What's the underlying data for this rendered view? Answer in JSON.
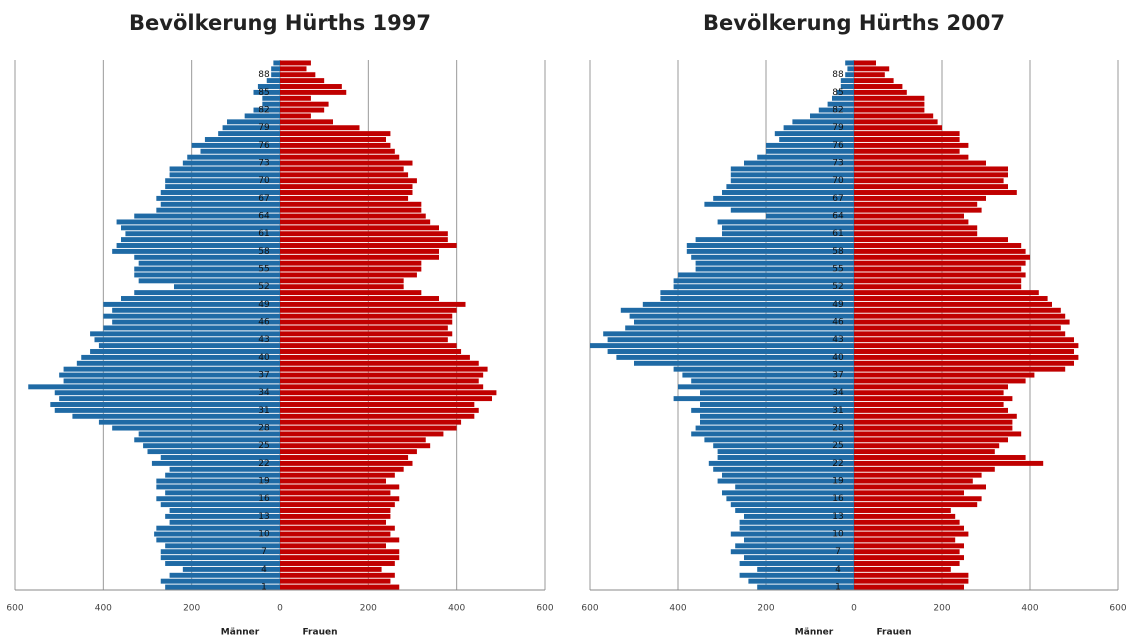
{
  "chart_data": [
    {
      "type": "bar",
      "orientation": "horizontal",
      "title": "Bevölkerung Hürths 1997",
      "categories": [
        "1",
        null,
        null,
        "4",
        null,
        null,
        "7",
        null,
        null,
        "10",
        null,
        null,
        "13",
        null,
        null,
        "16",
        null,
        null,
        "19",
        null,
        null,
        "22",
        null,
        null,
        "25",
        null,
        null,
        "28",
        null,
        null,
        "31",
        null,
        null,
        "34",
        null,
        null,
        "37",
        null,
        null,
        "40",
        null,
        null,
        "43",
        null,
        null,
        "46",
        null,
        null,
        "49",
        null,
        null,
        "52",
        null,
        null,
        "55",
        null,
        null,
        "58",
        null,
        null,
        "61",
        null,
        null,
        "64",
        null,
        null,
        "67",
        null,
        null,
        "70",
        null,
        null,
        "73",
        null,
        null,
        "76",
        null,
        null,
        "79",
        null,
        null,
        "82",
        null,
        null,
        "85",
        null,
        null,
        "88",
        null,
        null
      ],
      "series": [
        {
          "name": "Männer",
          "color": "#1f6aa5",
          "values": [
            -260,
            -270,
            -250,
            -220,
            -260,
            -270,
            -270,
            -260,
            -280,
            -285,
            -280,
            -250,
            -260,
            -250,
            -270,
            -280,
            -260,
            -280,
            -280,
            -260,
            -250,
            -290,
            -270,
            -300,
            -310,
            -330,
            -320,
            -380,
            -410,
            -470,
            -510,
            -520,
            -500,
            -510,
            -570,
            -490,
            -500,
            -490,
            -460,
            -450,
            -430,
            -410,
            -420,
            -430,
            -400,
            -380,
            -400,
            -380,
            -400,
            -360,
            -330,
            -240,
            -320,
            -330,
            -330,
            -320,
            -330,
            -380,
            -370,
            -360,
            -350,
            -360,
            -370,
            -330,
            -280,
            -270,
            -280,
            -270,
            -260,
            -260,
            -250,
            -250,
            -220,
            -210,
            -180,
            -200,
            -170,
            -140,
            -130,
            -120,
            -80,
            -60,
            -40,
            -40,
            -60,
            -50,
            -30,
            -20,
            -20,
            -15
          ]
        },
        {
          "name": "Frauen",
          "color": "#c00000",
          "values": [
            270,
            250,
            260,
            230,
            260,
            270,
            270,
            240,
            270,
            250,
            260,
            240,
            250,
            250,
            260,
            270,
            250,
            270,
            240,
            260,
            280,
            300,
            290,
            310,
            340,
            330,
            370,
            400,
            410,
            440,
            450,
            440,
            480,
            490,
            460,
            450,
            460,
            470,
            450,
            430,
            410,
            400,
            380,
            390,
            380,
            390,
            390,
            400,
            420,
            360,
            320,
            280,
            280,
            310,
            320,
            320,
            360,
            360,
            400,
            380,
            380,
            360,
            340,
            330,
            320,
            320,
            290,
            300,
            300,
            310,
            290,
            280,
            300,
            270,
            260,
            250,
            240,
            250,
            180,
            120,
            70,
            100,
            110,
            70,
            150,
            140,
            100,
            80,
            60,
            70
          ]
        }
      ],
      "xlim": [
        -600,
        600
      ],
      "xticks": [
        {
          "value": -600,
          "label": "600"
        },
        {
          "value": -400,
          "label": "400"
        },
        {
          "value": -200,
          "label": "200"
        },
        0,
        200,
        400,
        600
      ],
      "grid": true
    },
    {
      "type": "bar",
      "orientation": "horizontal",
      "title": "Bevölkerung Hürths 2007",
      "categories": [
        "1",
        null,
        null,
        "4",
        null,
        null,
        "7",
        null,
        null,
        "10",
        null,
        null,
        "13",
        null,
        null,
        "16",
        null,
        null,
        "19",
        null,
        null,
        "22",
        null,
        null,
        "25",
        null,
        null,
        "28",
        null,
        null,
        "31",
        null,
        null,
        "34",
        null,
        null,
        "37",
        null,
        null,
        "40",
        null,
        null,
        "43",
        null,
        null,
        "46",
        null,
        null,
        "49",
        null,
        null,
        "52",
        null,
        null,
        "55",
        null,
        null,
        "58",
        null,
        null,
        "61",
        null,
        null,
        "64",
        null,
        null,
        "67",
        null,
        null,
        "70",
        null,
        null,
        "73",
        null,
        null,
        "76",
        null,
        null,
        "79",
        null,
        null,
        "82",
        null,
        null,
        "85",
        null,
        null,
        "88",
        null,
        null
      ],
      "series": [
        {
          "name": "Männer",
          "color": "#1f6aa5",
          "values": [
            -220,
            -240,
            -260,
            -220,
            -260,
            -250,
            -280,
            -270,
            -250,
            -280,
            -260,
            -260,
            -250,
            -270,
            -280,
            -290,
            -300,
            -270,
            -310,
            -300,
            -320,
            -330,
            -310,
            -310,
            -320,
            -340,
            -370,
            -360,
            -350,
            -350,
            -370,
            -350,
            -410,
            -350,
            -400,
            -370,
            -390,
            -410,
            -500,
            -540,
            -560,
            -600,
            -560,
            -570,
            -520,
            -500,
            -510,
            -530,
            -480,
            -440,
            -440,
            -410,
            -410,
            -400,
            -360,
            -360,
            -370,
            -380,
            -380,
            -360,
            -300,
            -300,
            -310,
            -200,
            -280,
            -340,
            -320,
            -300,
            -290,
            -280,
            -280,
            -280,
            -250,
            -220,
            -200,
            -200,
            -170,
            -180,
            -160,
            -140,
            -100,
            -80,
            -60,
            -50,
            -40,
            -30,
            -30,
            -20,
            -15,
            -20
          ]
        },
        {
          "name": "Frauen",
          "color": "#c00000",
          "values": [
            250,
            260,
            260,
            220,
            240,
            250,
            240,
            250,
            230,
            260,
            250,
            240,
            230,
            220,
            280,
            290,
            250,
            300,
            270,
            290,
            320,
            430,
            390,
            320,
            330,
            350,
            380,
            360,
            360,
            370,
            350,
            340,
            360,
            340,
            350,
            390,
            410,
            480,
            500,
            510,
            500,
            510,
            500,
            480,
            470,
            490,
            480,
            470,
            450,
            440,
            420,
            380,
            380,
            390,
            380,
            390,
            400,
            390,
            380,
            350,
            280,
            280,
            260,
            250,
            290,
            280,
            300,
            370,
            350,
            340,
            350,
            350,
            300,
            260,
            240,
            260,
            240,
            240,
            200,
            190,
            180,
            160,
            160,
            160,
            120,
            110,
            90,
            70,
            80,
            50
          ]
        }
      ],
      "xlim": [
        -600,
        600
      ],
      "xticks": [
        {
          "value": -600,
          "label": "600"
        },
        {
          "value": -400,
          "label": "400"
        },
        {
          "value": -200,
          "label": "200"
        },
        0,
        200,
        400,
        600
      ],
      "grid": true
    }
  ]
}
